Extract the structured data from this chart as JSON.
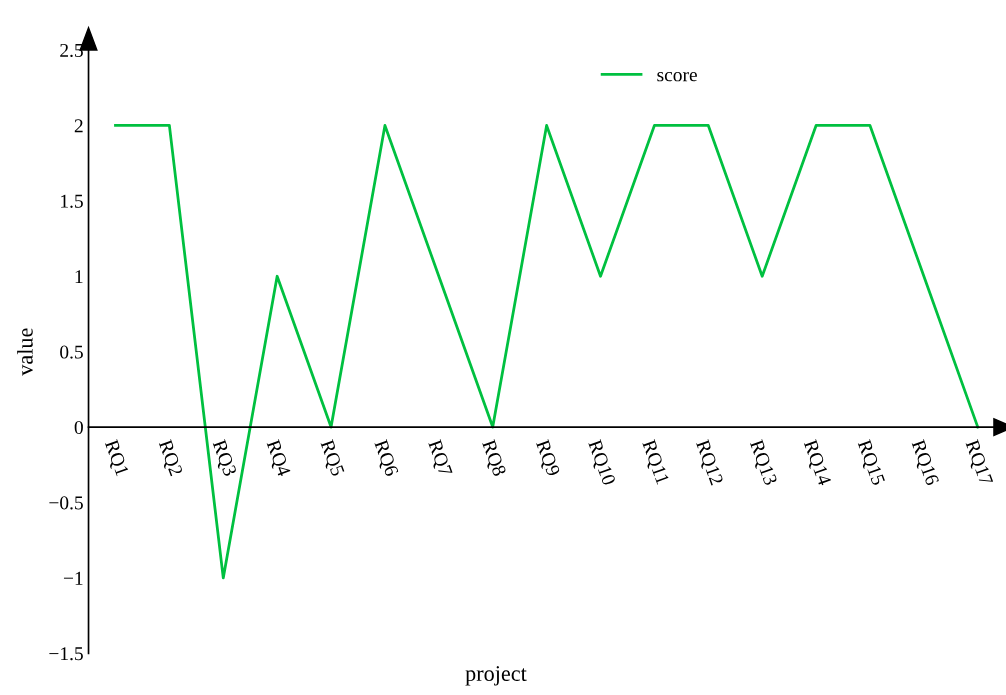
{
  "chart_data": {
    "type": "line",
    "xlabel": "project",
    "ylabel": "value",
    "categories": [
      "RQ1",
      "RQ2",
      "RQ3",
      "RQ4",
      "RQ5",
      "RQ6",
      "RQ7",
      "RQ8",
      "RQ9",
      "RQ10",
      "RQ11",
      "RQ12",
      "RQ13",
      "RQ14",
      "RQ15",
      "RQ16",
      "RQ17"
    ],
    "series": [
      {
        "name": "score",
        "color": "#00c040",
        "values": [
          2,
          2,
          -1,
          1,
          0,
          2,
          1,
          0,
          2,
          1,
          2,
          2,
          1,
          2,
          2,
          1,
          0
        ]
      }
    ],
    "ylim": [
      -1.5,
      2.5
    ],
    "yticks": [
      2.5,
      2,
      1.5,
      1,
      0.5,
      0,
      {
        "value": -0.5,
        "label": "−0.5"
      },
      {
        "value": -1,
        "label": "−1"
      },
      {
        "value": -1.5,
        "label": "−1.5"
      }
    ],
    "grid": false,
    "legend": "top",
    "marker": "none",
    "line_style": "solid"
  }
}
